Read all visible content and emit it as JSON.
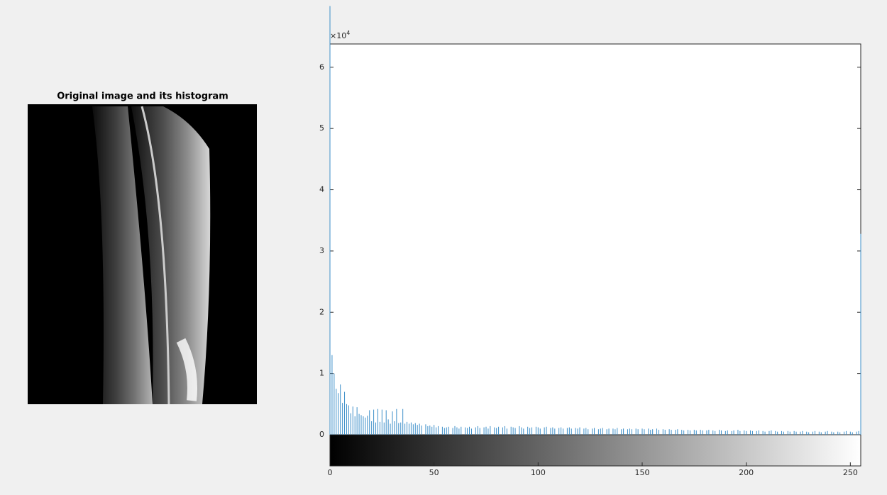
{
  "chart_data": {
    "type": "stem",
    "title": "Original image and its histogram",
    "color": "#3d8fc9",
    "xlim": [
      0,
      255
    ],
    "xticks": [
      0,
      50,
      100,
      150,
      200,
      250
    ],
    "ylim": [
      0,
      63800
    ],
    "yticks": [
      0,
      {
        "value": 10000,
        "label": "1"
      },
      {
        "value": 20000,
        "label": "2"
      },
      {
        "value": 30000,
        "label": "3"
      },
      {
        "value": 40000,
        "label": "4"
      },
      {
        "value": 50000,
        "label": "5"
      },
      {
        "value": 60000,
        "label": "6"
      }
    ],
    "y_exponent_base": "×10",
    "y_exponent_power": "4",
    "colorbar": "gray",
    "values": [
      70000,
      13000,
      10000,
      7500,
      6800,
      8200,
      5200,
      7000,
      5000,
      4800,
      3500,
      4600,
      3000,
      4500,
      3400,
      3200,
      3000,
      2800,
      3100,
      4000,
      2200,
      4100,
      2000,
      4200,
      2100,
      4100,
      2000,
      4000,
      2500,
      1800,
      3800,
      2200,
      4200,
      1900,
      2000,
      4200,
      1800,
      2100,
      1800,
      2000,
      1700,
      1900,
      1600,
      1800,
      1500,
      0,
      1700,
      1400,
      1500,
      1300,
      1600,
      1200,
      1400,
      0,
      1300,
      1100,
      1200,
      1300,
      0,
      1100,
      1400,
      1200,
      1000,
      1300,
      0,
      1200,
      1100,
      1300,
      1000,
      0,
      1200,
      1400,
      1100,
      0,
      1200,
      1300,
      1000,
      1400,
      0,
      1200,
      1100,
      1300,
      0,
      1200,
      1400,
      1000,
      0,
      1300,
      1200,
      1100,
      0,
      1400,
      1200,
      1000,
      0,
      1300,
      1100,
      1200,
      0,
      1300,
      1200,
      1000,
      0,
      1200,
      1300,
      0,
      1100,
      1200,
      1000,
      0,
      1100,
      1200,
      1000,
      0,
      1100,
      1200,
      1000,
      0,
      1100,
      1000,
      1200,
      0,
      1000,
      1100,
      900,
      0,
      1000,
      1100,
      0,
      900,
      1000,
      1100,
      0,
      900,
      1000,
      0,
      1000,
      900,
      1100,
      0,
      900,
      1000,
      0,
      900,
      1000,
      900,
      0,
      1000,
      900,
      0,
      1000,
      900,
      0,
      1000,
      800,
      900,
      0,
      1000,
      800,
      0,
      900,
      800,
      0,
      900,
      800,
      0,
      800,
      900,
      0,
      800,
      700,
      0,
      800,
      700,
      0,
      800,
      700,
      0,
      800,
      700,
      0,
      700,
      800,
      0,
      700,
      600,
      0,
      800,
      700,
      0,
      600,
      700,
      0,
      600,
      700,
      0,
      800,
      600,
      0,
      700,
      600,
      0,
      700,
      600,
      0,
      600,
      700,
      0,
      600,
      500,
      0,
      600,
      700,
      0,
      600,
      500,
      0,
      600,
      500,
      0,
      600,
      500,
      0,
      600,
      500,
      0,
      500,
      600,
      0,
      500,
      400,
      0,
      500,
      600,
      0,
      500,
      400,
      0,
      500,
      600,
      0,
      500,
      400,
      0,
      500,
      400,
      0,
      500,
      600,
      0,
      500,
      400,
      0,
      500,
      600,
      32800
    ]
  }
}
